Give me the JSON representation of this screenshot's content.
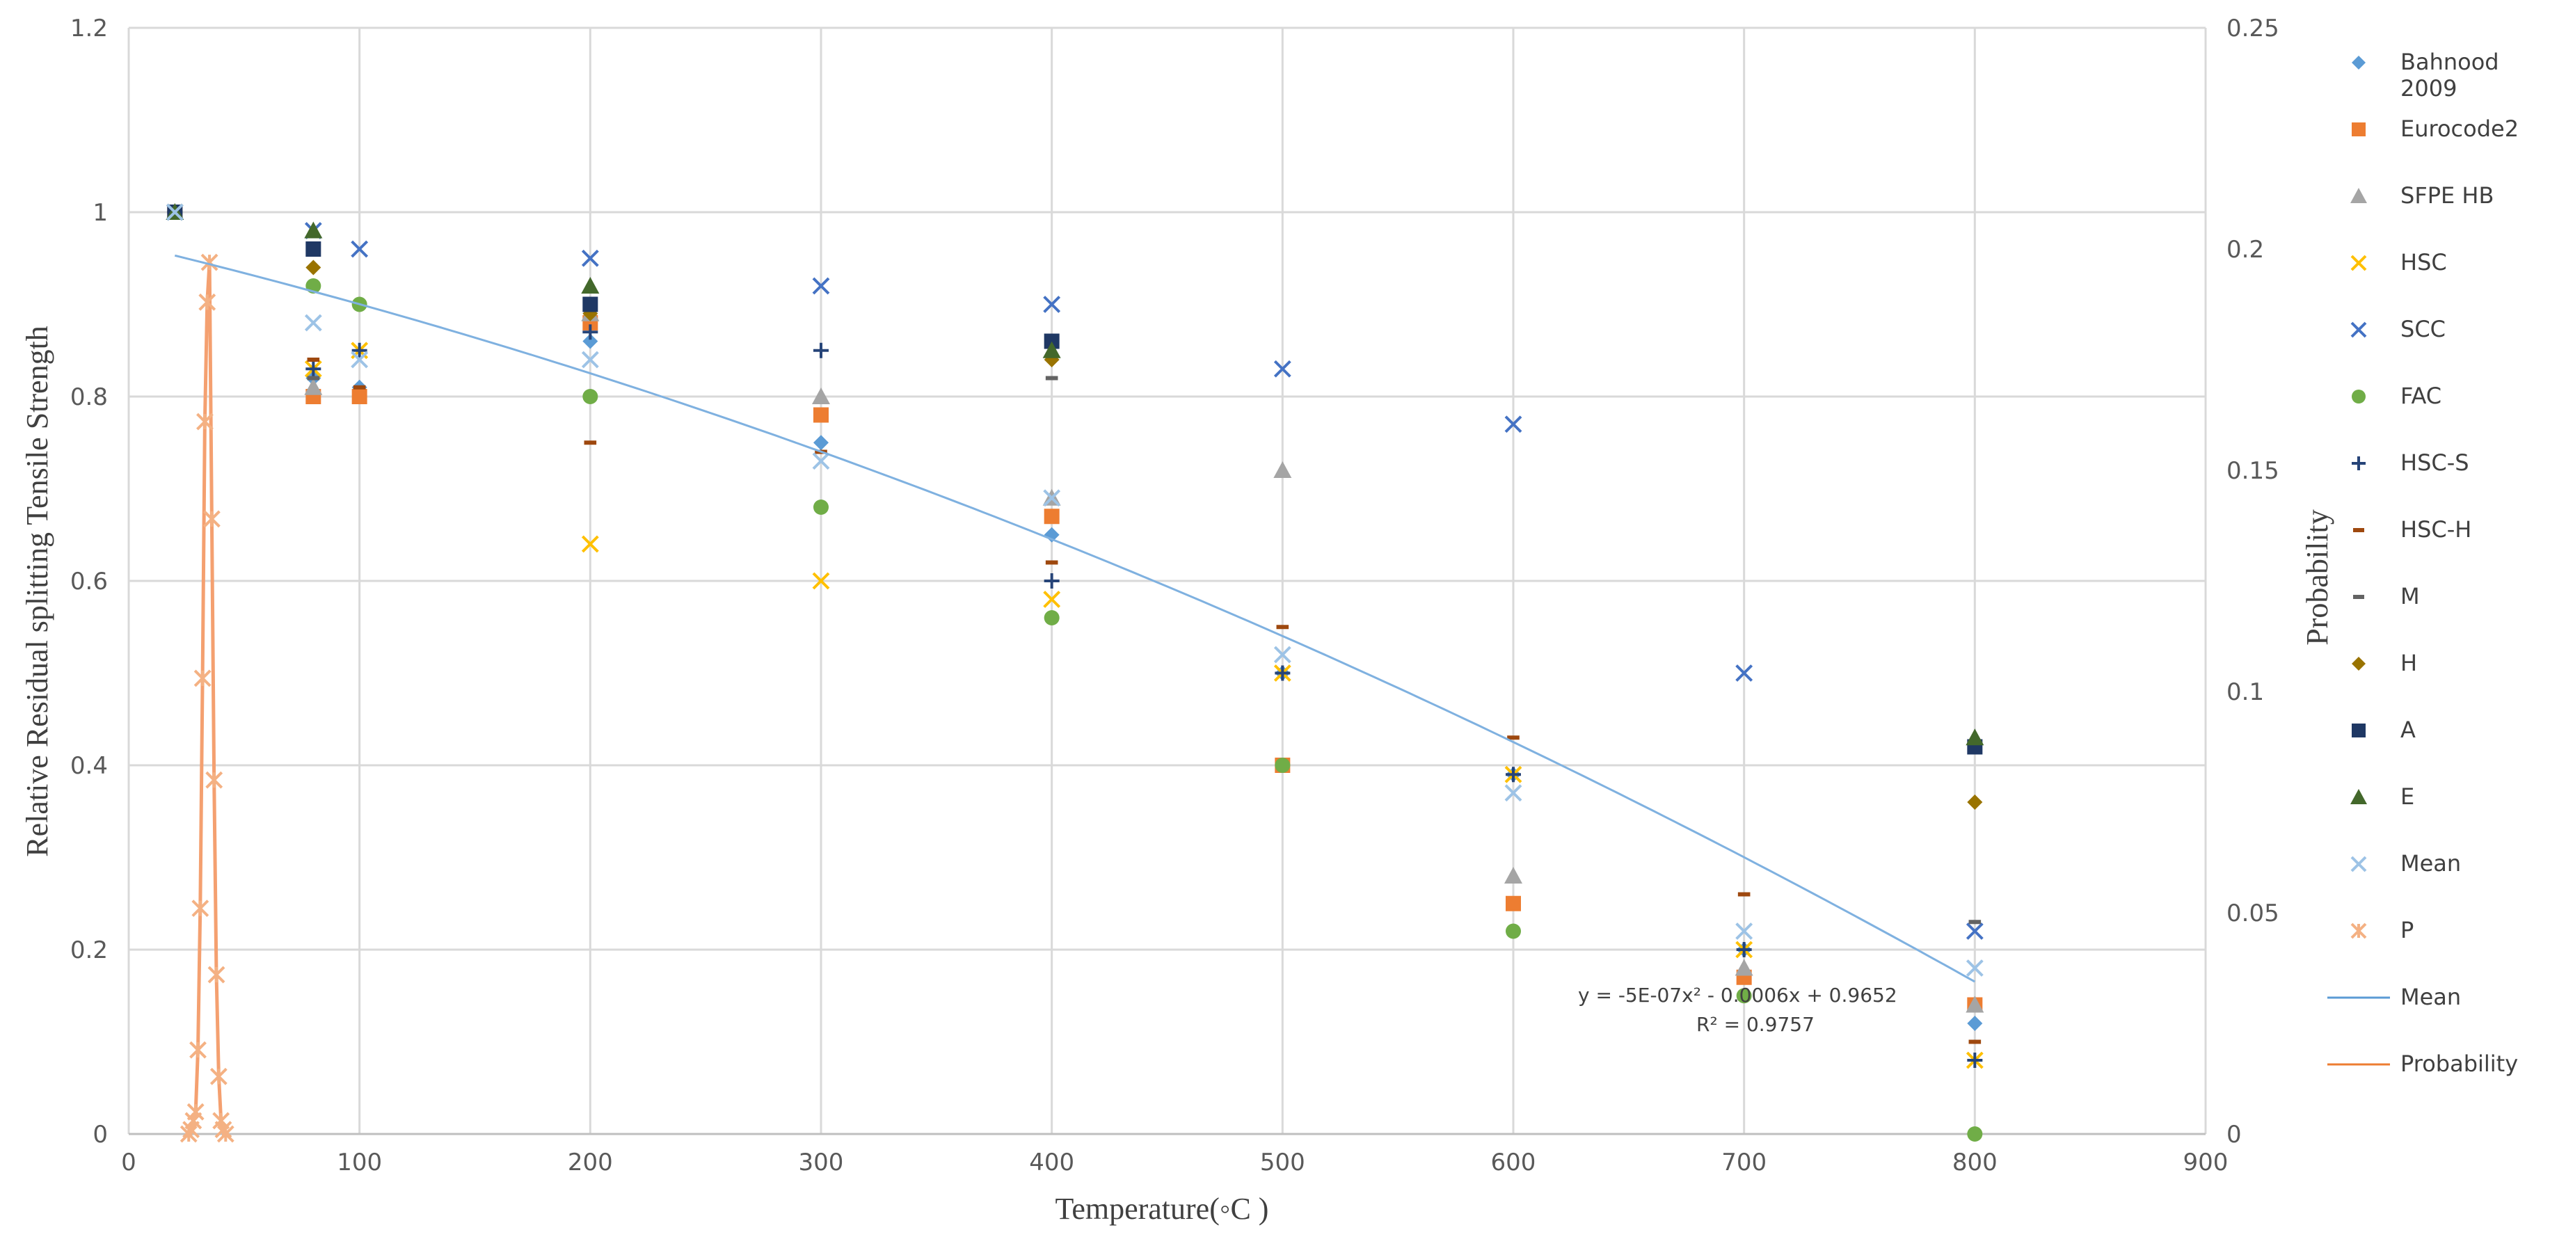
{
  "chart_data": {
    "type": "scatter",
    "xlabel": "Temperature(◦C )",
    "ylabel": "Relative Residual splitting Tensile Strength",
    "y2label": "Probability",
    "xlim": [
      0,
      900
    ],
    "ylim": [
      0,
      1.2
    ],
    "y2lim": [
      0,
      0.25
    ],
    "x_ticks": [
      0,
      100,
      200,
      300,
      400,
      500,
      600,
      700,
      800,
      900
    ],
    "y_ticks": [
      0,
      0.2,
      0.4,
      0.6,
      0.8,
      1,
      1.2
    ],
    "y_tick_labels": [
      "0",
      "0.2",
      "0.4",
      "0.6",
      "0.8",
      "1",
      "1.2"
    ],
    "y2_ticks": [
      0,
      0.05,
      0.1,
      0.15,
      0.2,
      0.25
    ],
    "y2_tick_labels": [
      "0",
      "0.05",
      "0.1",
      "0.15",
      "0.2",
      "0.25"
    ],
    "grid": true,
    "legend_position": "right",
    "trendline": {
      "equation": "y = -5E-07x² - 0.0006x + 0.9652",
      "r2": "R² = 0.9757",
      "coefficients": [
        -5e-07,
        -0.0006,
        0.9652
      ],
      "x_range": [
        20,
        800
      ]
    },
    "series": [
      {
        "name": "Bahnood 2009",
        "marker": "diamond",
        "color": "#5b9bd5",
        "points": [
          [
            20,
            1
          ],
          [
            80,
            0.82
          ],
          [
            100,
            0.81
          ],
          [
            200,
            0.86
          ],
          [
            300,
            0.75
          ],
          [
            400,
            0.65
          ],
          [
            500,
            0.5
          ],
          [
            600,
            0.39
          ],
          [
            700,
            0.2
          ],
          [
            800,
            0.12
          ]
        ]
      },
      {
        "name": "Eurocode2",
        "marker": "square",
        "color": "#ed7d31",
        "points": [
          [
            20,
            1
          ],
          [
            80,
            0.8
          ],
          [
            100,
            0.8
          ],
          [
            200,
            0.88
          ],
          [
            300,
            0.78
          ],
          [
            400,
            0.67
          ],
          [
            500,
            0.4
          ],
          [
            600,
            0.25
          ],
          [
            700,
            0.17
          ],
          [
            800,
            0.14
          ]
        ]
      },
      {
        "name": "SFPE HB",
        "marker": "triangle",
        "color": "#a5a5a5",
        "points": [
          [
            20,
            1
          ],
          [
            80,
            0.81
          ],
          [
            200,
            0.89
          ],
          [
            300,
            0.8
          ],
          [
            400,
            0.69
          ],
          [
            500,
            0.72
          ],
          [
            600,
            0.28
          ],
          [
            700,
            0.18
          ],
          [
            800,
            0.14
          ]
        ]
      },
      {
        "name": "HSC",
        "marker": "x",
        "color": "#ffc000",
        "points": [
          [
            20,
            1
          ],
          [
            80,
            0.83
          ],
          [
            100,
            0.85
          ],
          [
            200,
            0.64
          ],
          [
            300,
            0.6
          ],
          [
            400,
            0.58
          ],
          [
            500,
            0.5
          ],
          [
            600,
            0.39
          ],
          [
            700,
            0.2
          ],
          [
            800,
            0.08
          ]
        ]
      },
      {
        "name": "SCC",
        "marker": "x",
        "color": "#4472c4",
        "points": [
          [
            20,
            1
          ],
          [
            80,
            0.98
          ],
          [
            100,
            0.96
          ],
          [
            200,
            0.95
          ],
          [
            300,
            0.92
          ],
          [
            400,
            0.9
          ],
          [
            500,
            0.83
          ],
          [
            600,
            0.77
          ],
          [
            700,
            0.5
          ],
          [
            800,
            0.22
          ]
        ]
      },
      {
        "name": "FAC",
        "marker": "circle",
        "color": "#70ad47",
        "points": [
          [
            20,
            1
          ],
          [
            80,
            0.92
          ],
          [
            100,
            0.9
          ],
          [
            200,
            0.8
          ],
          [
            300,
            0.68
          ],
          [
            400,
            0.56
          ],
          [
            500,
            0.4
          ],
          [
            600,
            0.22
          ],
          [
            700,
            0.15
          ],
          [
            800,
            0
          ]
        ]
      },
      {
        "name": "HSC-S",
        "marker": "plus",
        "color": "#264478",
        "points": [
          [
            20,
            1
          ],
          [
            80,
            0.83
          ],
          [
            100,
            0.85
          ],
          [
            200,
            0.87
          ],
          [
            300,
            0.85
          ],
          [
            400,
            0.6
          ],
          [
            500,
            0.5
          ],
          [
            600,
            0.39
          ],
          [
            700,
            0.2
          ],
          [
            800,
            0.08
          ]
        ]
      },
      {
        "name": "HSC-H",
        "marker": "dash",
        "color": "#9e480e",
        "points": [
          [
            80,
            0.84
          ],
          [
            100,
            0.81
          ],
          [
            200,
            0.75
          ],
          [
            300,
            0.74
          ],
          [
            400,
            0.62
          ],
          [
            500,
            0.55
          ],
          [
            600,
            0.43
          ],
          [
            700,
            0.26
          ],
          [
            800,
            0.1
          ]
        ]
      },
      {
        "name": "M",
        "marker": "dash",
        "color": "#636363",
        "points": [
          [
            80,
            0.82
          ],
          [
            400,
            0.82
          ],
          [
            800,
            0.23
          ]
        ]
      },
      {
        "name": "H",
        "marker": "diamond",
        "color": "#997300",
        "points": [
          [
            20,
            1
          ],
          [
            80,
            0.94
          ],
          [
            200,
            0.89
          ],
          [
            400,
            0.84
          ],
          [
            800,
            0.36
          ]
        ]
      },
      {
        "name": "A",
        "marker": "square",
        "color": "#1f3864",
        "points": [
          [
            20,
            1
          ],
          [
            80,
            0.96
          ],
          [
            200,
            0.9
          ],
          [
            400,
            0.86
          ],
          [
            800,
            0.42
          ]
        ]
      },
      {
        "name": "E",
        "marker": "triangle",
        "color": "#43682b",
        "points": [
          [
            20,
            1
          ],
          [
            80,
            0.98
          ],
          [
            200,
            0.92
          ],
          [
            400,
            0.85
          ],
          [
            800,
            0.43
          ]
        ]
      },
      {
        "name": "Mean",
        "marker": "x",
        "color": "#9dc3e6",
        "points": [
          [
            20,
            1
          ],
          [
            80,
            0.88
          ],
          [
            100,
            0.84
          ],
          [
            200,
            0.84
          ],
          [
            300,
            0.73
          ],
          [
            400,
            0.69
          ],
          [
            500,
            0.52
          ],
          [
            600,
            0.37
          ],
          [
            700,
            0.22
          ],
          [
            800,
            0.18
          ]
        ]
      },
      {
        "name": "P",
        "marker": "star",
        "color": "#f4b183",
        "axis": "y2",
        "line": true,
        "points": [
          [
            26,
            0
          ],
          [
            27,
            0.001
          ],
          [
            28,
            0.003
          ],
          [
            29,
            0.005
          ],
          [
            30,
            0.019
          ],
          [
            31,
            0.051
          ],
          [
            32,
            0.103
          ],
          [
            33,
            0.161
          ],
          [
            34,
            0.188
          ],
          [
            35,
            0.197
          ],
          [
            36,
            0.139
          ],
          [
            37,
            0.08
          ],
          [
            38,
            0.036
          ],
          [
            39,
            0.013
          ],
          [
            40,
            0.003
          ],
          [
            41,
            0.001
          ],
          [
            42,
            0
          ]
        ]
      }
    ],
    "legend": [
      {
        "name": "Bahnood 2009",
        "marker": "diamond",
        "color": "#5b9bd5"
      },
      {
        "name": "Eurocode2",
        "marker": "square",
        "color": "#ed7d31"
      },
      {
        "name": "SFPE HB",
        "marker": "triangle",
        "color": "#a5a5a5"
      },
      {
        "name": "HSC",
        "marker": "x",
        "color": "#ffc000"
      },
      {
        "name": "SCC",
        "marker": "x",
        "color": "#4472c4"
      },
      {
        "name": "FAC",
        "marker": "circle",
        "color": "#70ad47"
      },
      {
        "name": "HSC-S",
        "marker": "plus",
        "color": "#264478"
      },
      {
        "name": "HSC-H",
        "marker": "dash",
        "color": "#9e480e"
      },
      {
        "name": "M",
        "marker": "dash",
        "color": "#636363"
      },
      {
        "name": "H",
        "marker": "diamond",
        "color": "#997300"
      },
      {
        "name": "A",
        "marker": "square",
        "color": "#1f3864"
      },
      {
        "name": "E",
        "marker": "triangle",
        "color": "#43682b"
      },
      {
        "name": "Mean",
        "marker": "x",
        "color": "#9dc3e6"
      },
      {
        "name": "P",
        "marker": "star",
        "color": "#f4b183"
      },
      {
        "name": "Mean",
        "marker": "line",
        "color": "#5b9bd5"
      },
      {
        "name": "Probability",
        "marker": "line",
        "color": "#ed7d31"
      }
    ]
  }
}
